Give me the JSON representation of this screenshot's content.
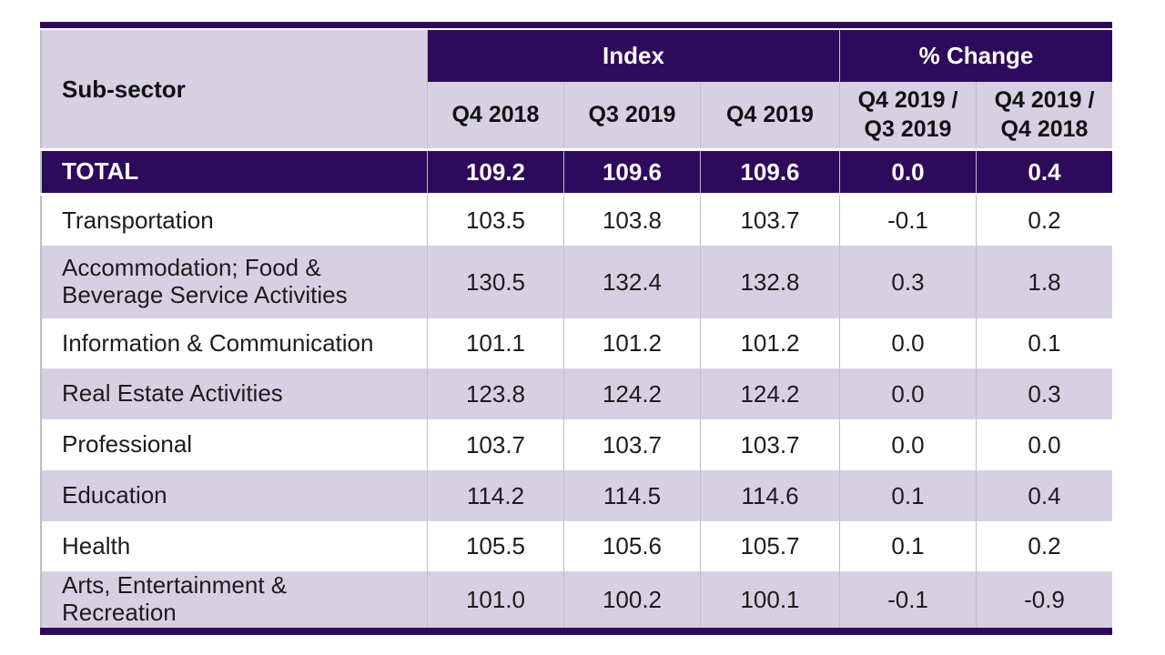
{
  "colors": {
    "dark_purple": "#2e0a5c",
    "lavender_band": "#d7d0e3",
    "separator_gray": "#bfbfbf",
    "header_text": "#ffffff",
    "body_text": "#1c1c1c"
  },
  "chart_data": {
    "type": "table",
    "corner_header": "Sub-sector",
    "group_headers": [
      {
        "label": "Index",
        "span": 3
      },
      {
        "label": "% Change",
        "span": 2
      }
    ],
    "columns": [
      "Q4 2018",
      "Q3 2019",
      "Q4 2019",
      "Q4 2019 /\nQ3 2019",
      "Q4 2019 /\nQ4 2018"
    ],
    "total_row": {
      "label": "TOTAL",
      "values": [
        "109.2",
        "109.6",
        "109.6",
        "0.0",
        "0.4"
      ]
    },
    "rows": [
      {
        "label": "Transportation",
        "values": [
          "103.5",
          "103.8",
          "103.7",
          "-0.1",
          "0.2"
        ]
      },
      {
        "label": "Accommodation; Food &\nBeverage Service Activities",
        "values": [
          "130.5",
          "132.4",
          "132.8",
          "0.3",
          "1.8"
        ]
      },
      {
        "label": "Information & Communication",
        "values": [
          "101.1",
          "101.2",
          "101.2",
          "0.0",
          "0.1"
        ]
      },
      {
        "label": "Real Estate Activities",
        "values": [
          "123.8",
          "124.2",
          "124.2",
          "0.0",
          "0.3"
        ]
      },
      {
        "label": "Professional",
        "values": [
          "103.7",
          "103.7",
          "103.7",
          "0.0",
          "0.0"
        ]
      },
      {
        "label": "Education",
        "values": [
          "114.2",
          "114.5",
          "114.6",
          "0.1",
          "0.4"
        ]
      },
      {
        "label": "Health",
        "values": [
          "105.5",
          "105.6",
          "105.7",
          "0.1",
          "0.2"
        ]
      },
      {
        "label": "Arts, Entertainment &\nRecreation",
        "values": [
          "101.0",
          "100.2",
          "100.1",
          "-0.1",
          "-0.9"
        ]
      }
    ]
  }
}
